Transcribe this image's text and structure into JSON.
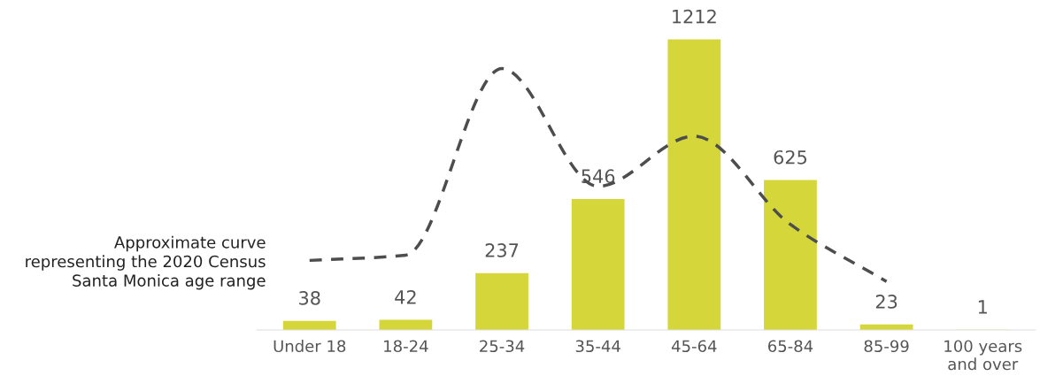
{
  "chart_data": {
    "type": "bar",
    "categories": [
      "Under 18",
      "18-24",
      "25-34",
      "35-44",
      "45-64",
      "65-84",
      "85-99",
      "100 years\nand over"
    ],
    "grid": false,
    "legend": false,
    "series": [
      {
        "color": "#d4d63a",
        "values": [
          38,
          42,
          237,
          546,
          1212,
          625,
          23,
          1
        ],
        "value_labels": [
          "38",
          "42",
          "237",
          "546",
          "1212",
          "625",
          "23",
          "1"
        ]
      },
      {
        "type": "line",
        "color": "#4d4d4d",
        "line_style": "dashed",
        "values": [
          290,
          312,
          1090,
          599,
          808,
          440,
          202,
          null
        ]
      }
    ],
    "annotations": [
      "Approximate curve\nrepresenting the 2020 Census\nSanta Monica age range"
    ]
  }
}
